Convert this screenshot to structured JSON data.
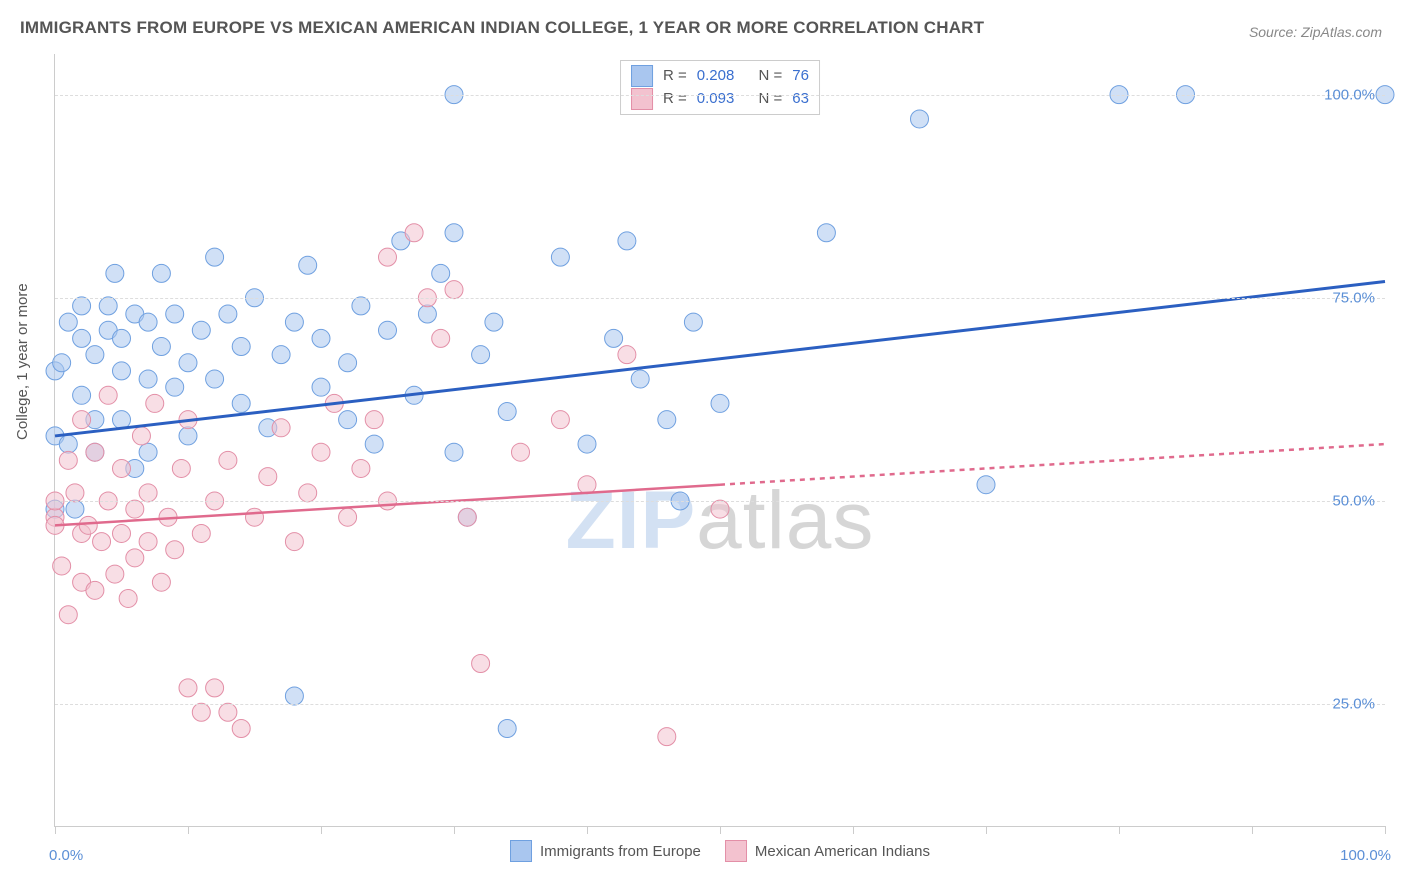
{
  "title": "IMMIGRANTS FROM EUROPE VS MEXICAN AMERICAN INDIAN COLLEGE, 1 YEAR OR MORE CORRELATION CHART",
  "source": "Source: ZipAtlas.com",
  "ylabel": "College, 1 year or more",
  "watermark": {
    "a": "ZIP",
    "b": "atlas"
  },
  "chart": {
    "type": "scatter-with-regression",
    "xlim": [
      0,
      100
    ],
    "ylim": [
      10,
      105
    ],
    "yticks": [
      25,
      50,
      75,
      100
    ],
    "ytick_labels": [
      "25.0%",
      "50.0%",
      "75.0%",
      "100.0%"
    ],
    "xticks": [
      0,
      10,
      20,
      30,
      40,
      50,
      60,
      70,
      80,
      90,
      100
    ],
    "xaxis_left_label": "0.0%",
    "xaxis_right_label": "100.0%",
    "background": "#ffffff",
    "grid_color": "#dddddd",
    "axis_color": "#cccccc",
    "label_color": "#5b8fd6",
    "marker_radius": 9,
    "marker_opacity": 0.55,
    "series": [
      {
        "name": "Immigrants from Europe",
        "color_fill": "#a9c6ef",
        "color_stroke": "#6fa0e0",
        "r": "0.208",
        "n": "76",
        "regression": {
          "x1": 0,
          "y1": 58,
          "x2": 100,
          "y2": 77,
          "width": 3,
          "dash": "",
          "extrapolate_dash": ""
        },
        "points": [
          [
            0,
            58
          ],
          [
            0,
            49
          ],
          [
            0,
            66
          ],
          [
            0.5,
            67
          ],
          [
            1,
            72
          ],
          [
            1,
            57
          ],
          [
            1.5,
            49
          ],
          [
            2,
            63
          ],
          [
            2,
            70
          ],
          [
            2,
            74
          ],
          [
            3,
            68
          ],
          [
            3,
            60
          ],
          [
            3,
            56
          ],
          [
            4,
            71
          ],
          [
            4,
            74
          ],
          [
            4.5,
            78
          ],
          [
            5,
            70
          ],
          [
            5,
            66
          ],
          [
            5,
            60
          ],
          [
            6,
            73
          ],
          [
            6,
            54
          ],
          [
            7,
            65
          ],
          [
            7,
            72
          ],
          [
            7,
            56
          ],
          [
            8,
            78
          ],
          [
            8,
            69
          ],
          [
            9,
            64
          ],
          [
            9,
            73
          ],
          [
            10,
            67
          ],
          [
            10,
            58
          ],
          [
            11,
            71
          ],
          [
            12,
            65
          ],
          [
            12,
            80
          ],
          [
            13,
            73
          ],
          [
            14,
            62
          ],
          [
            14,
            69
          ],
          [
            15,
            75
          ],
          [
            16,
            59
          ],
          [
            17,
            68
          ],
          [
            18,
            72
          ],
          [
            19,
            79
          ],
          [
            20,
            64
          ],
          [
            20,
            70
          ],
          [
            22,
            67
          ],
          [
            22,
            60
          ],
          [
            23,
            74
          ],
          [
            24,
            57
          ],
          [
            25,
            71
          ],
          [
            26,
            82
          ],
          [
            27,
            63
          ],
          [
            28,
            73
          ],
          [
            29,
            78
          ],
          [
            30,
            83
          ],
          [
            30,
            56
          ],
          [
            30,
            100
          ],
          [
            31,
            48
          ],
          [
            32,
            68
          ],
          [
            33,
            72
          ],
          [
            34,
            61
          ],
          [
            34,
            22
          ],
          [
            38,
            80
          ],
          [
            40,
            57
          ],
          [
            42,
            70
          ],
          [
            43,
            82
          ],
          [
            44,
            65
          ],
          [
            46,
            60
          ],
          [
            47,
            50
          ],
          [
            48,
            72
          ],
          [
            50,
            62
          ],
          [
            58,
            83
          ],
          [
            65,
            97
          ],
          [
            70,
            52
          ],
          [
            80,
            100
          ],
          [
            85,
            100
          ],
          [
            100,
            100
          ],
          [
            18,
            26
          ]
        ]
      },
      {
        "name": "Mexican American Indians",
        "color_fill": "#f3c2cf",
        "color_stroke": "#e38fa7",
        "r": "0.093",
        "n": "63",
        "regression": {
          "x1": 0,
          "y1": 47,
          "x2": 50,
          "y2": 52,
          "width": 2.5,
          "dash": "",
          "extrapolate_to": 100,
          "extrapolate_y": 57,
          "extrapolate_dash": "5,5"
        },
        "points": [
          [
            0,
            48
          ],
          [
            0,
            47
          ],
          [
            0,
            50
          ],
          [
            0.5,
            42
          ],
          [
            1,
            55
          ],
          [
            1,
            36
          ],
          [
            1.5,
            51
          ],
          [
            2,
            46
          ],
          [
            2,
            60
          ],
          [
            2,
            40
          ],
          [
            2.5,
            47
          ],
          [
            3,
            56
          ],
          [
            3,
            39
          ],
          [
            3.5,
            45
          ],
          [
            4,
            50
          ],
          [
            4,
            63
          ],
          [
            4.5,
            41
          ],
          [
            5,
            46
          ],
          [
            5,
            54
          ],
          [
            5.5,
            38
          ],
          [
            6,
            49
          ],
          [
            6,
            43
          ],
          [
            6.5,
            58
          ],
          [
            7,
            45
          ],
          [
            7,
            51
          ],
          [
            7.5,
            62
          ],
          [
            8,
            40
          ],
          [
            8.5,
            48
          ],
          [
            9,
            44
          ],
          [
            9.5,
            54
          ],
          [
            10,
            27
          ],
          [
            10,
            60
          ],
          [
            11,
            24
          ],
          [
            11,
            46
          ],
          [
            12,
            27
          ],
          [
            12,
            50
          ],
          [
            13,
            24
          ],
          [
            13,
            55
          ],
          [
            14,
            22
          ],
          [
            15,
            48
          ],
          [
            16,
            53
          ],
          [
            17,
            59
          ],
          [
            18,
            45
          ],
          [
            19,
            51
          ],
          [
            20,
            56
          ],
          [
            21,
            62
          ],
          [
            22,
            48
          ],
          [
            23,
            54
          ],
          [
            24,
            60
          ],
          [
            25,
            50
          ],
          [
            25,
            80
          ],
          [
            27,
            83
          ],
          [
            28,
            75
          ],
          [
            29,
            70
          ],
          [
            30,
            76
          ],
          [
            31,
            48
          ],
          [
            32,
            30
          ],
          [
            35,
            56
          ],
          [
            38,
            60
          ],
          [
            40,
            52
          ],
          [
            43,
            68
          ],
          [
            46,
            21
          ],
          [
            50,
            49
          ]
        ]
      }
    ]
  },
  "stat_legend": {
    "rows": [
      {
        "swatch_fill": "#a9c6ef",
        "swatch_stroke": "#6fa0e0",
        "r_label": "R =",
        "r_val": "0.208",
        "n_label": "N =",
        "n_val": "76"
      },
      {
        "swatch_fill": "#f3c2cf",
        "swatch_stroke": "#e38fa7",
        "r_label": "R =",
        "r_val": "0.093",
        "n_label": "N =",
        "n_val": "63"
      }
    ]
  },
  "bottom_legend": {
    "items": [
      {
        "swatch_fill": "#a9c6ef",
        "swatch_stroke": "#6fa0e0",
        "label": "Immigrants from Europe"
      },
      {
        "swatch_fill": "#f3c2cf",
        "swatch_stroke": "#e38fa7",
        "label": "Mexican American Indians"
      }
    ]
  }
}
